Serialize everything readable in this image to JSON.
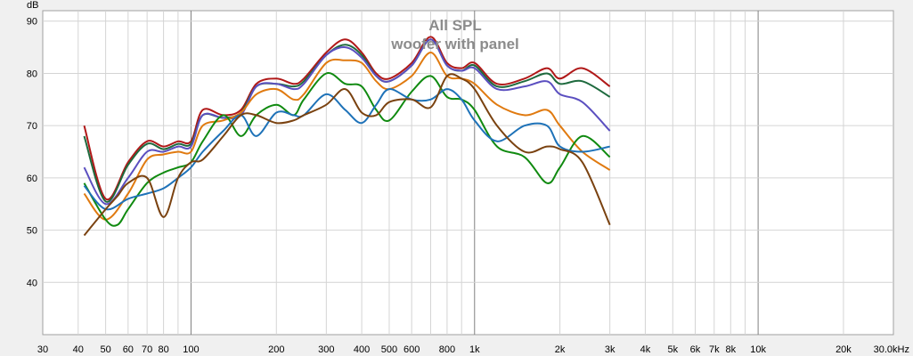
{
  "chart_data": {
    "type": "line",
    "title": "All SPL",
    "subtitle": "woofer with panel",
    "ylabel": "dB",
    "xlabel": "",
    "x_scale": "log",
    "xlim": [
      30,
      30000
    ],
    "ylim": [
      30,
      92
    ],
    "grid": true,
    "legend": "none",
    "y_ticks": [
      {
        "value": 40,
        "label": "40"
      },
      {
        "value": 50,
        "label": "50"
      },
      {
        "value": 60,
        "label": "60"
      },
      {
        "value": 70,
        "label": "70"
      },
      {
        "value": 80,
        "label": "80"
      },
      {
        "value": 90,
        "label": "90"
      }
    ],
    "x_ticks": [
      {
        "value": 30,
        "label": "30"
      },
      {
        "value": 40,
        "label": "40"
      },
      {
        "value": 50,
        "label": "50"
      },
      {
        "value": 60,
        "label": "60"
      },
      {
        "value": 70,
        "label": "70"
      },
      {
        "value": 80,
        "label": "80"
      },
      {
        "value": 100,
        "label": "100"
      },
      {
        "value": 200,
        "label": "200"
      },
      {
        "value": 300,
        "label": "300"
      },
      {
        "value": 400,
        "label": "400"
      },
      {
        "value": 500,
        "label": "500"
      },
      {
        "value": 600,
        "label": "600"
      },
      {
        "value": 800,
        "label": "800"
      },
      {
        "value": 1000,
        "label": "1k"
      },
      {
        "value": 2000,
        "label": "2k"
      },
      {
        "value": 3000,
        "label": "3k"
      },
      {
        "value": 4000,
        "label": "4k"
      },
      {
        "value": 5000,
        "label": "5k"
      },
      {
        "value": 6000,
        "label": "6k"
      },
      {
        "value": 7000,
        "label": "7k"
      },
      {
        "value": 8000,
        "label": "8k"
      },
      {
        "value": 10000,
        "label": "10k"
      },
      {
        "value": 20000,
        "label": "20k"
      },
      {
        "value": 30000,
        "label": "30.0kHz"
      }
    ],
    "x_minor": [
      90,
      700,
      900,
      9000
    ],
    "x_major": [
      100,
      1000,
      10000
    ],
    "series": [
      {
        "color": "#b01818",
        "x": [
          42,
          50,
          60,
          70,
          80,
          90,
          100,
          110,
          130,
          150,
          170,
          200,
          230,
          250,
          300,
          350,
          400,
          450,
          500,
          600,
          700,
          800,
          900,
          1000,
          1200,
          1500,
          1800,
          2000,
          2400,
          3000
        ],
        "y": [
          70,
          56,
          63,
          67,
          66,
          67,
          67,
          73,
          72,
          73,
          78,
          79,
          78,
          79,
          84,
          86.5,
          84,
          80,
          79,
          82,
          87,
          82,
          81,
          82,
          78,
          79,
          81,
          79,
          81,
          77.5
        ]
      },
      {
        "color": "#1e6a3e",
        "x": [
          42,
          50,
          60,
          70,
          80,
          90,
          100,
          110,
          130,
          150,
          170,
          200,
          230,
          250,
          300,
          350,
          400,
          450,
          500,
          600,
          700,
          800,
          900,
          1000,
          1200,
          1500,
          1800,
          2000,
          2400,
          3000
        ],
        "y": [
          68,
          55.5,
          62.5,
          66.5,
          65.5,
          66.5,
          66.5,
          72,
          71.5,
          72.5,
          77.5,
          78,
          77.5,
          78.5,
          83.5,
          85.5,
          83.5,
          79.5,
          78.5,
          81.5,
          86.5,
          81.5,
          80.5,
          81.5,
          77.5,
          78.5,
          80,
          78,
          78.5,
          75.5
        ]
      },
      {
        "color": "#5b4fc0",
        "x": [
          42,
          50,
          60,
          70,
          80,
          90,
          100,
          110,
          130,
          150,
          170,
          200,
          230,
          250,
          300,
          350,
          400,
          450,
          500,
          600,
          700,
          800,
          900,
          1000,
          1200,
          1500,
          1800,
          2000,
          2400,
          3000
        ],
        "y": [
          62,
          55,
          60,
          65,
          65,
          66,
          66,
          72,
          71.5,
          72,
          77.5,
          78,
          77,
          78,
          83.5,
          85,
          83,
          79.5,
          78.5,
          81.5,
          86.5,
          81.5,
          80.5,
          81,
          77,
          77.5,
          78.5,
          76,
          74.5,
          69
        ]
      },
      {
        "color": "#e07a10",
        "x": [
          42,
          50,
          60,
          70,
          80,
          90,
          100,
          110,
          130,
          150,
          170,
          200,
          230,
          250,
          300,
          350,
          400,
          450,
          500,
          600,
          700,
          800,
          900,
          1000,
          1200,
          1500,
          1800,
          2000,
          2400,
          3000
        ],
        "y": [
          57,
          52,
          57,
          63.5,
          64.5,
          65,
          65,
          70,
          71,
          72.5,
          76,
          77,
          75,
          76,
          82,
          82.5,
          82,
          78.5,
          77,
          79.5,
          84,
          79.5,
          79,
          78,
          74,
          72,
          73,
          70,
          65,
          61.5
        ]
      },
      {
        "color": "#108a10",
        "x": [
          42,
          50,
          55,
          60,
          70,
          80,
          90,
          100,
          110,
          130,
          150,
          170,
          200,
          230,
          250,
          300,
          350,
          400,
          450,
          500,
          600,
          700,
          800,
          900,
          1000,
          1200,
          1500,
          1800,
          2000,
          2400,
          3000
        ],
        "y": [
          59,
          52,
          51,
          54,
          59,
          61,
          62,
          63,
          67,
          72,
          68,
          72,
          74,
          72,
          75,
          80,
          78,
          77.5,
          73,
          71,
          76.5,
          79.5,
          75.5,
          75,
          73,
          66,
          64,
          59,
          62,
          68,
          64
        ]
      },
      {
        "color": "#1e72b8",
        "x": [
          42,
          50,
          60,
          70,
          80,
          90,
          100,
          110,
          130,
          150,
          170,
          200,
          230,
          250,
          300,
          350,
          400,
          450,
          500,
          600,
          700,
          800,
          900,
          1000,
          1200,
          1500,
          1800,
          2000,
          2400,
          3000
        ],
        "y": [
          58.5,
          54,
          56,
          57,
          58,
          60,
          62,
          65,
          69,
          72,
          68,
          72.5,
          72,
          72,
          76,
          73,
          70.5,
          74,
          77,
          75,
          75,
          77,
          75,
          71,
          67,
          70,
          70,
          66,
          65,
          66
        ]
      },
      {
        "color": "#7a4210",
        "x": [
          42,
          50,
          55,
          60,
          70,
          80,
          90,
          100,
          110,
          130,
          150,
          170,
          200,
          230,
          250,
          300,
          350,
          400,
          450,
          500,
          600,
          700,
          800,
          900,
          1000,
          1200,
          1500,
          1800,
          2000,
          2400,
          3000
        ],
        "y": [
          49,
          54,
          56.5,
          59,
          60,
          52.5,
          60,
          63,
          63.5,
          68,
          72,
          72,
          70.5,
          71,
          72,
          74,
          77,
          72.5,
          72,
          74.5,
          75,
          73.5,
          79.5,
          79,
          77,
          70,
          65,
          66,
          65.5,
          63,
          51
        ]
      }
    ]
  }
}
